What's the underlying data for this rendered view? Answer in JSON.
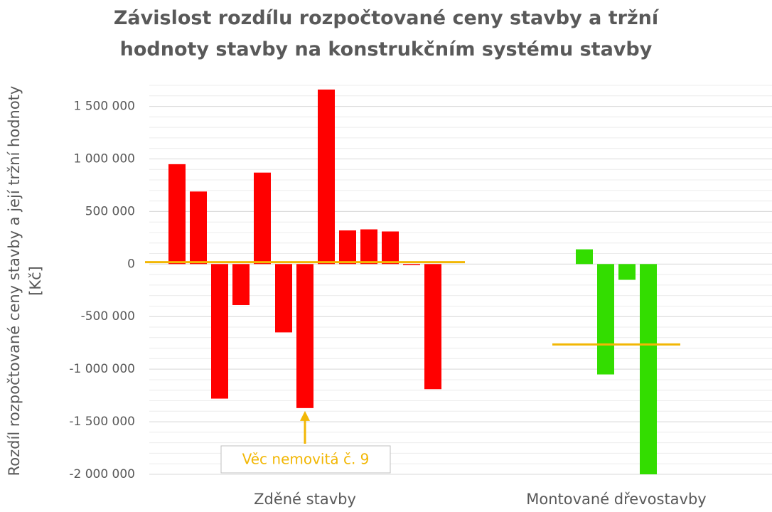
{
  "chart_data": {
    "type": "grouped-bar",
    "title": "Závislost rozdílu rozpočtované ceny stavby a tržní hodnoty stavby na konstrukčním systému stavby",
    "y_label": "Rozdíl rozpočtované ceny stavby a její tržní hodnoty [Kč]",
    "categories": [
      "Zděné stavby",
      "Montované dřevostavby"
    ],
    "groups": [
      {
        "color": "#ff0000",
        "values": [
          950000,
          690000,
          -1280000,
          -390000,
          870000,
          -650000,
          -1370000,
          1660000,
          320000,
          330000,
          310000,
          -10000,
          -1190000
        ],
        "mean": 18000
      },
      {
        "color": "#33dd00",
        "values": [
          140000,
          -1050000,
          -150000,
          -2000000
        ],
        "mean": -765000
      }
    ],
    "mean_color": "#f2b705",
    "ylim": [
      -2000000,
      1700000
    ],
    "yticks": [
      {
        "value": -2000000,
        "label": "-2 000 000"
      },
      {
        "value": -1500000,
        "label": "-1 500 000"
      },
      {
        "value": -1000000,
        "label": "-1 000 000"
      },
      {
        "value": -500000,
        "label": "-500 000"
      },
      0,
      {
        "value": 500000,
        "label": "500 000"
      },
      {
        "value": 1000000,
        "label": "1 000 000"
      },
      {
        "value": 1500000,
        "label": "1 500 000"
      }
    ],
    "minor_grid": 100000,
    "annotation": {
      "text": "Věc nemovitá č. 9",
      "group": 0,
      "index": 6
    }
  }
}
